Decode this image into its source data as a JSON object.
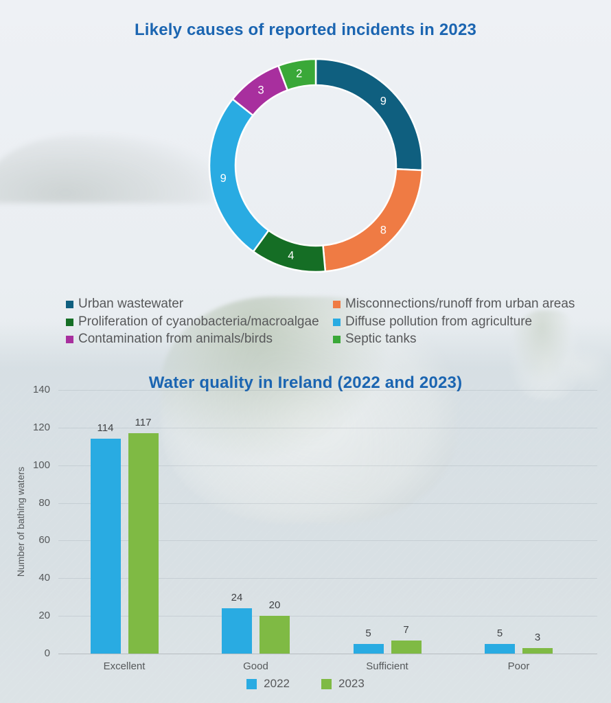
{
  "title_color": "#1b65b1",
  "text_colors": {
    "axis_labels": "#55585a",
    "legend_text": "#57585a",
    "bar_value_labels": "#3f4144",
    "donut_segment_labels": "#ffffff"
  },
  "chart_data": [
    {
      "type": "pie",
      "donut": true,
      "title": "Likely causes of reported incidents in 2023",
      "labels": [
        "Urban wastewater",
        "Misconnections/runoff from urban areas",
        "Proliferation of cyanobacteria/macroalgae",
        "Diffuse pollution from agriculture",
        "Contamination from animals/birds",
        "Septic tanks"
      ],
      "values": [
        9,
        8,
        4,
        9,
        3,
        2
      ],
      "colors": [
        "#0f5f7f",
        "#ef7b44",
        "#156e25",
        "#29abe2",
        "#a82f9e",
        "#3aa838"
      ],
      "start_angle_deg": 0,
      "direction": "clockwise",
      "legend_position": "below",
      "legend_columns": 2
    },
    {
      "type": "bar",
      "title": "Water quality in Ireland (2022 and 2023)",
      "categories": [
        "Excellent",
        "Good",
        "Sufficient",
        "Poor"
      ],
      "series": [
        {
          "name": "2022",
          "color": "#29abe2",
          "values": [
            114,
            24,
            5,
            5
          ]
        },
        {
          "name": "2023",
          "color": "#7fba44",
          "values": [
            117,
            20,
            7,
            3
          ]
        }
      ],
      "ylabel": "Number of bathing waters",
      "xlabel": "",
      "ylim": [
        0,
        140
      ],
      "yticks": [
        0,
        20,
        40,
        60,
        80,
        100,
        120,
        140
      ],
      "grid": true,
      "value_labels": true,
      "legend_position": "bottom"
    }
  ]
}
